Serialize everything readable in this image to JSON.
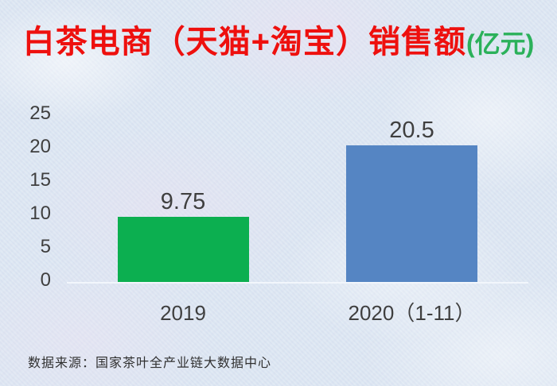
{
  "title": {
    "main": "白茶电商（天猫+淘宝）销售额",
    "unit": "(亿元)"
  },
  "source": "数据来源：国家茶叶全产业链大数据中心",
  "colors": {
    "title_red": "#ee100e",
    "unit_green": "#2bb15a",
    "label_gray": "#3f3f3f",
    "background": "#dce6f2",
    "axis_line": "#f2f6fc",
    "bar_2019_green": "#0caf50",
    "bar_2020_blue": "#5585c3"
  },
  "chart_data": {
    "type": "bar",
    "title": "白茶电商（天猫+淘宝）销售额(亿元)",
    "categories": [
      "2019",
      "2020（1-11）"
    ],
    "values": [
      9.75,
      20.5
    ],
    "value_labels": [
      "9.75",
      "20.5"
    ],
    "bar_colors": [
      "#0caf50",
      "#5585c3"
    ],
    "xlabel": "",
    "ylabel": "",
    "yticks": [
      0,
      5,
      10,
      15,
      20,
      25
    ],
    "ylim": [
      0,
      25
    ],
    "grid": false,
    "legend": false,
    "source_note": "数据来源：国家茶叶全产业链大数据中心"
  }
}
